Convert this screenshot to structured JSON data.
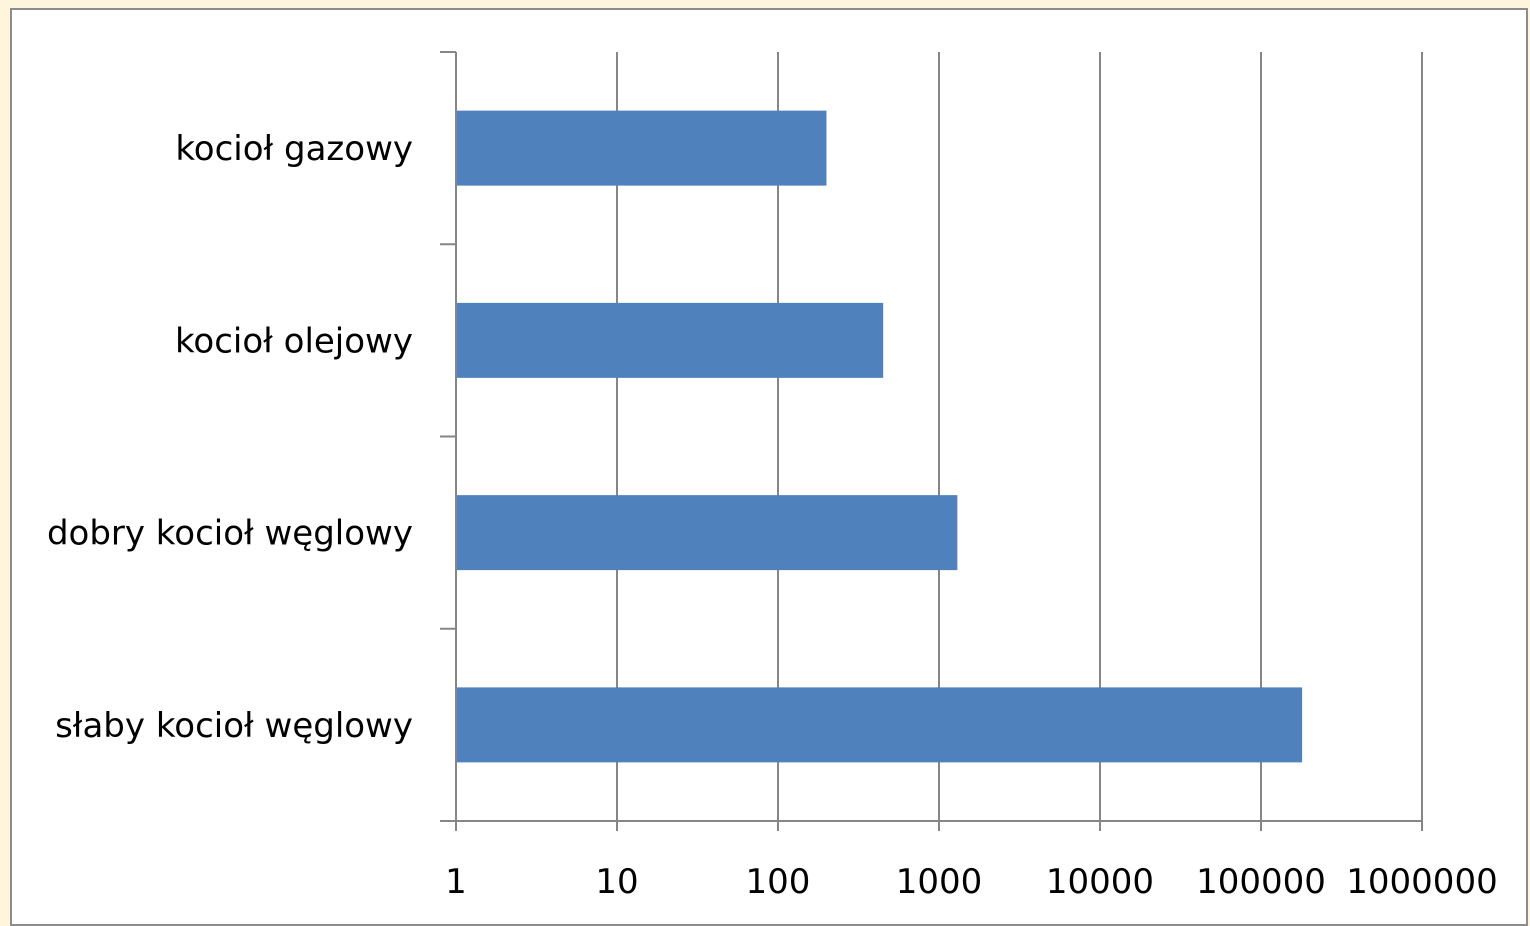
{
  "chart_data": {
    "type": "bar",
    "orientation": "horizontal",
    "categories": [
      "kocioł gazowy",
      "kocioł olejowy",
      "dobry kocioł węglowy",
      "słaby kocioł węglowy"
    ],
    "values": [
      200,
      450,
      1300,
      180000
    ],
    "xscale": "log",
    "xlim": [
      1,
      1000000
    ],
    "xticks": [
      "1",
      "10",
      "100",
      "1000",
      "10000",
      "100000",
      "1000000"
    ],
    "grid": "vertical",
    "legend": "none",
    "title": "",
    "xlabel": "",
    "ylabel": "",
    "colors": {
      "bar": "#4f81bd",
      "grid": "#868686",
      "axis": "#868686",
      "frame": "#8c8c8c",
      "page_background": "#fdf6dc"
    }
  }
}
